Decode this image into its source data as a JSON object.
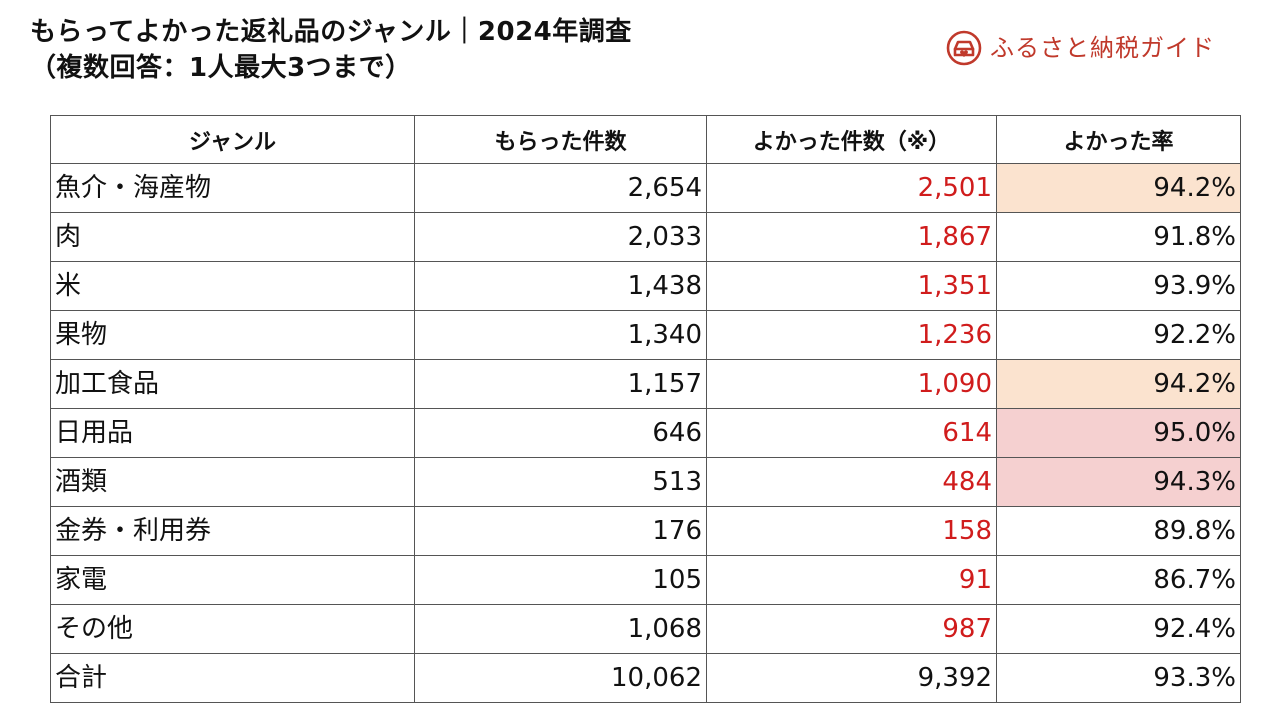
{
  "title": {
    "line1": "もらってよかった返礼品のジャンル｜2024年調査",
    "line2": "（複数回答：1人最大3つまで）"
  },
  "brand": {
    "name": "ふるさと納税ガイド",
    "color": "#c0392b",
    "icon": "car-heart-logo-icon"
  },
  "colors": {
    "good_count_text": "#d01c1c",
    "highlight_orange": "#fbe3cf",
    "highlight_pink": "#f5d0d0"
  },
  "chart_data": {
    "type": "table",
    "columns": [
      "ジャンル",
      "もらった件数",
      "よかった件数（※）",
      "よかった率"
    ],
    "rows": [
      {
        "genre": "魚介・海産物",
        "received": "2,654",
        "good": "2,501",
        "rate": "94.2%",
        "highlight": "orange"
      },
      {
        "genre": "肉",
        "received": "2,033",
        "good": "1,867",
        "rate": "91.8%",
        "highlight": "none"
      },
      {
        "genre": "米",
        "received": "1,438",
        "good": "1,351",
        "rate": "93.9%",
        "highlight": "none"
      },
      {
        "genre": "果物",
        "received": "1,340",
        "good": "1,236",
        "rate": "92.2%",
        "highlight": "none"
      },
      {
        "genre": "加工食品",
        "received": "1,157",
        "good": "1,090",
        "rate": "94.2%",
        "highlight": "orange"
      },
      {
        "genre": "日用品",
        "received": "646",
        "good": "614",
        "rate": "95.0%",
        "highlight": "pink"
      },
      {
        "genre": "酒類",
        "received": "513",
        "good": "484",
        "rate": "94.3%",
        "highlight": "pink"
      },
      {
        "genre": "金券・利用券",
        "received": "176",
        "good": "158",
        "rate": "89.8%",
        "highlight": "none"
      },
      {
        "genre": "家電",
        "received": "105",
        "good": "91",
        "rate": "86.7%",
        "highlight": "none"
      },
      {
        "genre": "その他",
        "received": "1,068",
        "good": "987",
        "rate": "92.4%",
        "highlight": "none"
      }
    ],
    "total": {
      "genre": "合計",
      "received": "10,062",
      "good": "9,392",
      "rate": "93.3%"
    }
  }
}
